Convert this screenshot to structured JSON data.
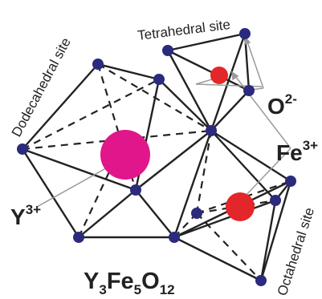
{
  "labels": {
    "tetrahedral": "Tetrahedral site",
    "dodecahedral": "Dodecahedral site",
    "octahedral": "Octahedral site",
    "oxygen_base": "O",
    "oxygen_charge": "2-",
    "iron_base": "Fe",
    "iron_charge": "3+",
    "yttrium_base": "Y",
    "yttrium_charge": "3+",
    "formula_y": "Y",
    "formula_y_sub": "3",
    "formula_fe": "Fe",
    "formula_fe_sub": "5",
    "formula_o": "O",
    "formula_o_sub": "12"
  },
  "colors": {
    "oxygen": "#2b2a7c",
    "iron": "#e3262a",
    "yttrium": "#e2168b",
    "bond": "#222222",
    "pointer": "#9a9a9a",
    "fe_label": "#e3262a",
    "y_label": "#e2168b",
    "o_label": "#2b2a7c"
  }
}
